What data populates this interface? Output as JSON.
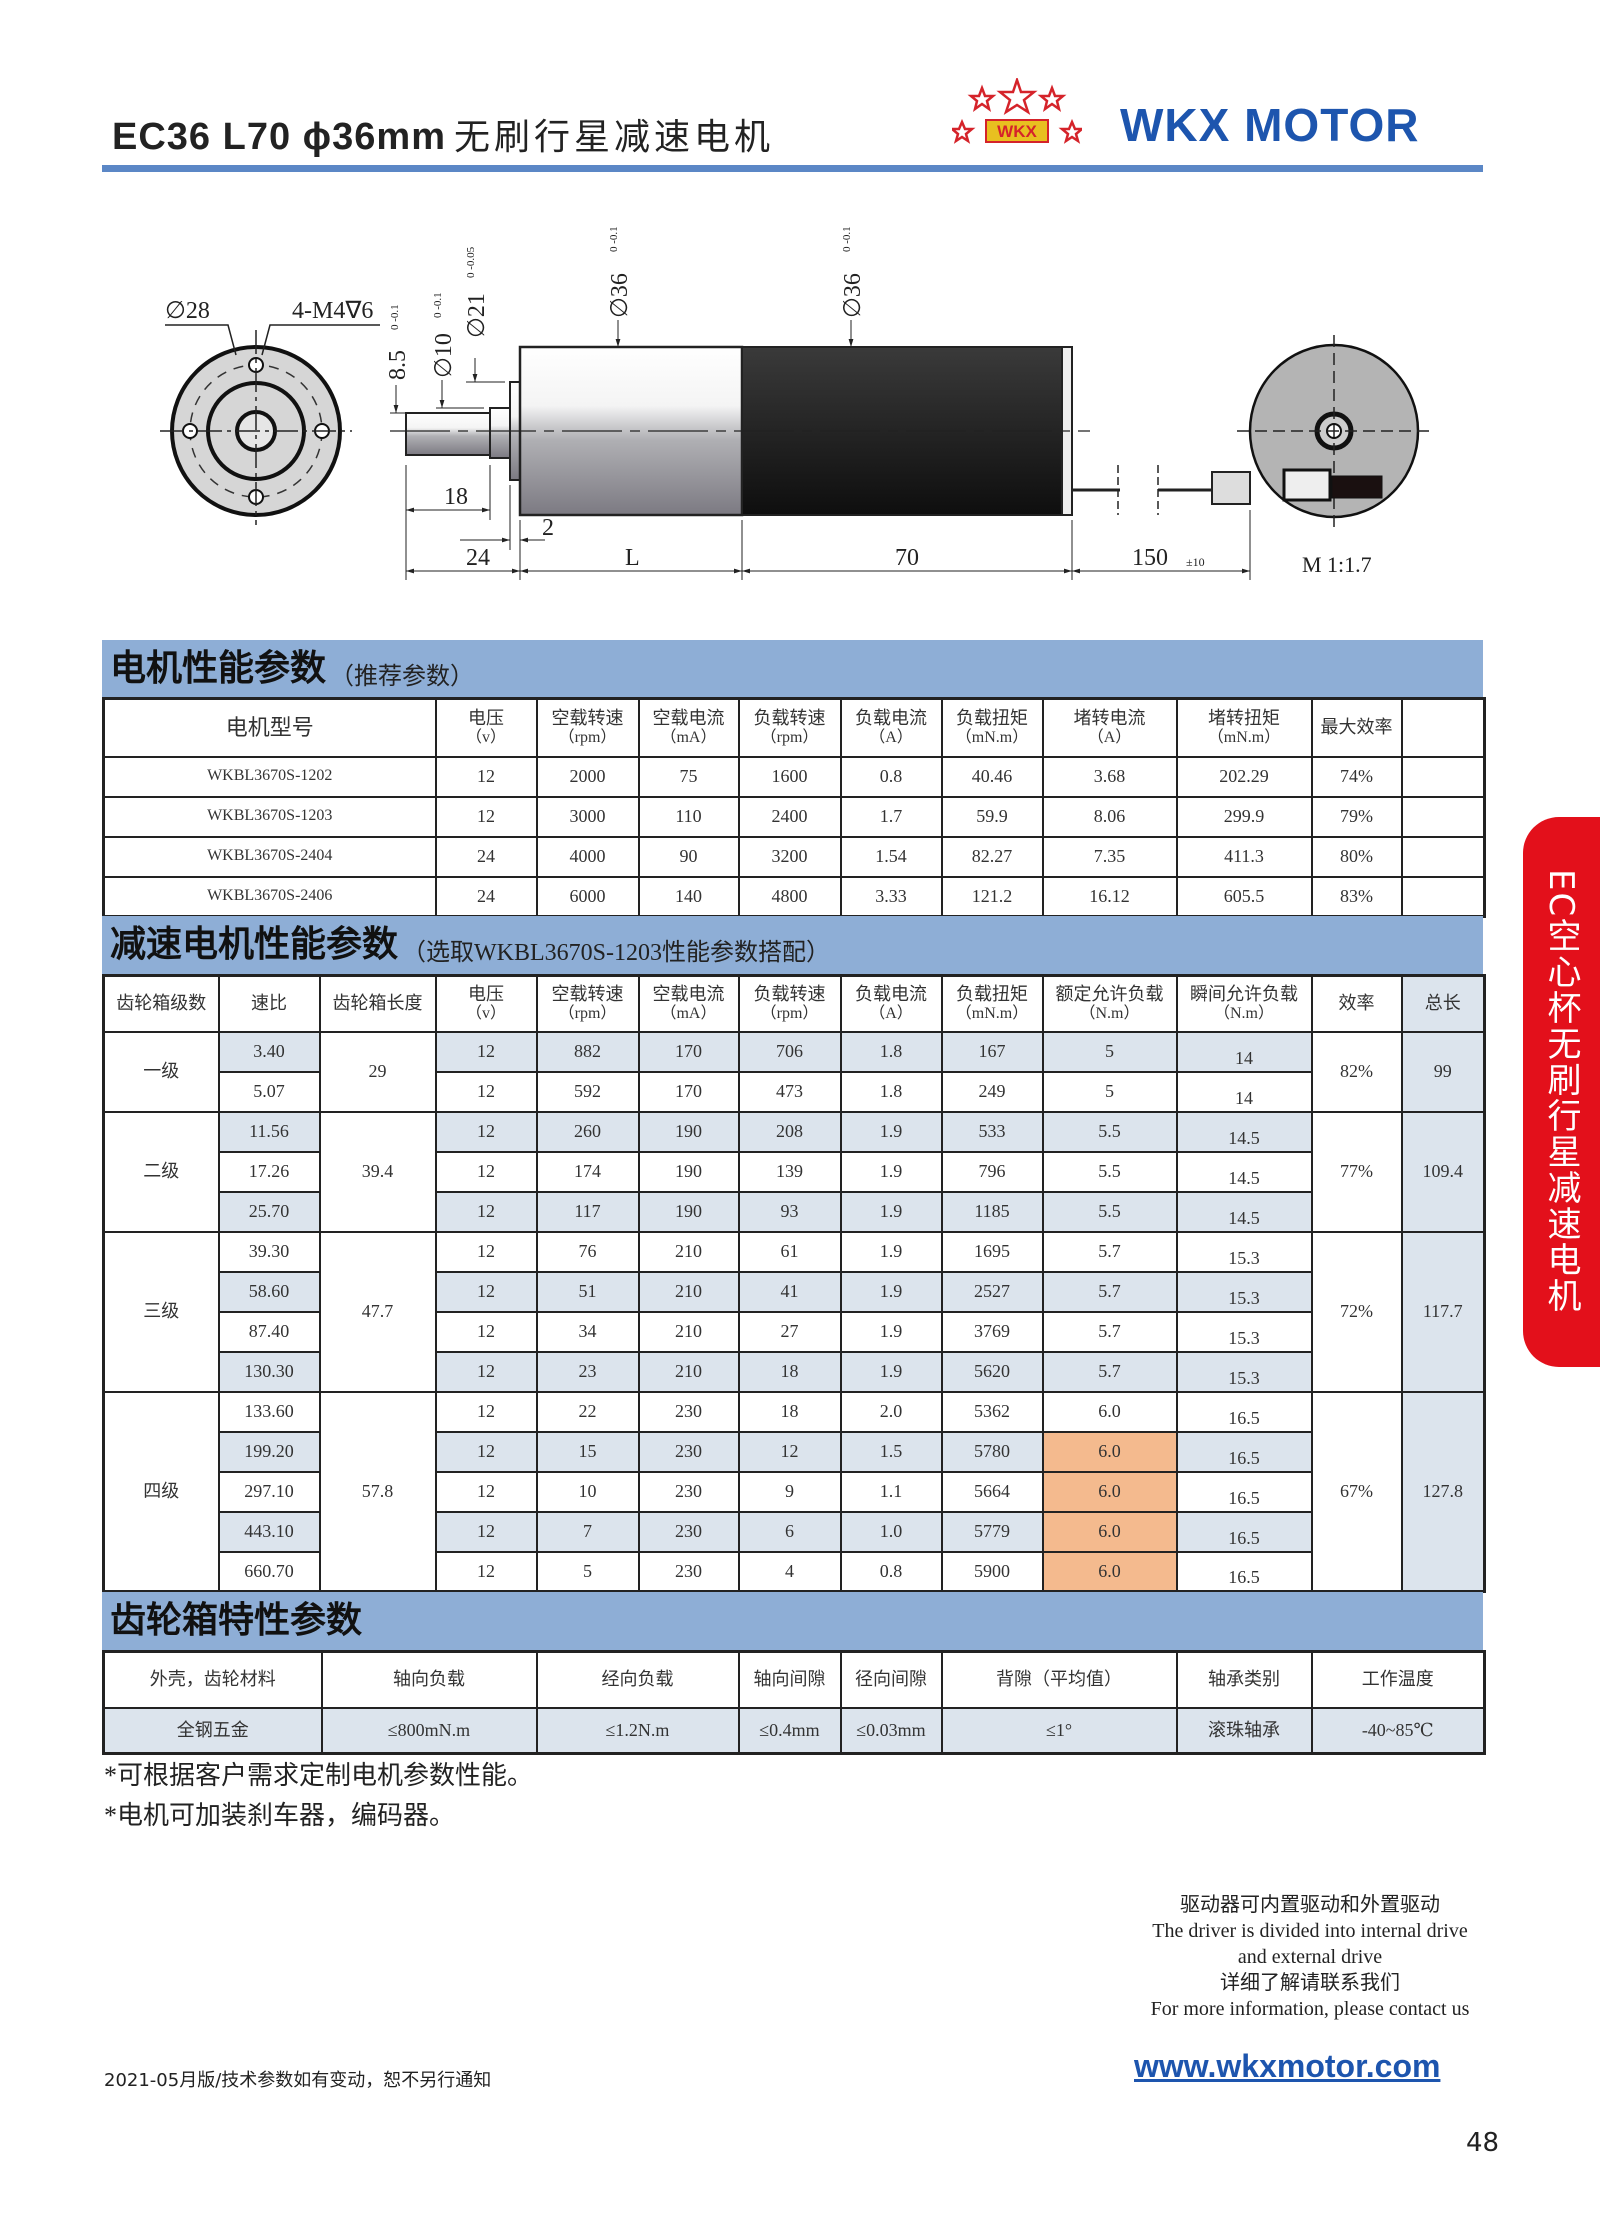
{
  "header": {
    "title_model": "EC36 L70 ϕ36mm",
    "title_cn": "无刷行星减速电机",
    "brand": "WKX MOTOR",
    "logo_text": "WKX"
  },
  "drawing": {
    "labels": {
      "d28": "∅28",
      "holes": "4-M4∇6",
      "h85": "8.5",
      "h85_tol": "0 -0.1",
      "d10": "∅10",
      "d10_tol": "0 -0.1",
      "d21": "∅21",
      "d21_tol": "0 -0.05",
      "d36a": "∅36",
      "d36a_tol": "0 -0.1",
      "d36b": "∅36",
      "d36b_tol": "0 -0.1",
      "l18": "18",
      "l2": "2",
      "l24": "24",
      "lL": "L",
      "l70": "70",
      "l150": "150",
      "l150_tol": "±10",
      "scale": "M 1:1.7"
    }
  },
  "motor": {
    "section_title": "电机性能参数",
    "section_sub": "（推荐参数）",
    "headers": [
      [
        "电机型号",
        ""
      ],
      [
        "电压",
        "（v）"
      ],
      [
        "空载转速",
        "（rpm）"
      ],
      [
        "空载电流",
        "（mA）"
      ],
      [
        "负载转速",
        "（rpm）"
      ],
      [
        "负载电流",
        "（A）"
      ],
      [
        "负载扭矩",
        "（mN.m）"
      ],
      [
        "堵转电流",
        "（A）"
      ],
      [
        "堵转扭矩",
        "（mN.m）"
      ],
      [
        "最大效率",
        ""
      ],
      [
        "",
        ""
      ]
    ],
    "rows": [
      [
        "WKBL3670S-1202",
        "12",
        "2000",
        "75",
        "1600",
        "0.8",
        "40.46",
        "3.68",
        "202.29",
        "74%",
        ""
      ],
      [
        "WKBL3670S-1203",
        "12",
        "3000",
        "110",
        "2400",
        "1.7",
        "59.9",
        "8.06",
        "299.9",
        "79%",
        ""
      ],
      [
        "WKBL3670S-2404",
        "24",
        "4000",
        "90",
        "3200",
        "1.54",
        "82.27",
        "7.35",
        "411.3",
        "80%",
        ""
      ],
      [
        "WKBL3670S-2406",
        "24",
        "6000",
        "140",
        "4800",
        "3.33",
        "121.2",
        "16.12",
        "605.5",
        "83%",
        ""
      ]
    ]
  },
  "gear": {
    "section_title": "减速电机性能参数",
    "section_sub": "（选取WKBL3670S-1203性能参数搭配）",
    "headers": [
      [
        "齿轮箱级数",
        ""
      ],
      [
        "速比",
        ""
      ],
      [
        "齿轮箱长度",
        ""
      ],
      [
        "电压",
        "（v）"
      ],
      [
        "空载转速",
        "（rpm）"
      ],
      [
        "空载电流",
        "（mA）"
      ],
      [
        "负载转速",
        "（rpm）"
      ],
      [
        "负载电流",
        "（A）"
      ],
      [
        "负载扭矩",
        "（mN.m）"
      ],
      [
        "额定允许负载",
        "（N.m）"
      ],
      [
        "瞬间允许负载",
        "（N.m）"
      ],
      [
        "效率",
        ""
      ],
      [
        "总长",
        ""
      ]
    ],
    "groups": [
      {
        "stage": "一级",
        "length": "29",
        "efficiency": "82%",
        "total": "99",
        "rows": [
          [
            "3.40",
            "12",
            "882",
            "170",
            "706",
            "1.8",
            "167",
            "5",
            "14"
          ],
          [
            "5.07",
            "12",
            "592",
            "170",
            "473",
            "1.8",
            "249",
            "5",
            "14"
          ]
        ]
      },
      {
        "stage": "二级",
        "length": "39.4",
        "efficiency": "77%",
        "total": "109.4",
        "rows": [
          [
            "11.56",
            "12",
            "260",
            "190",
            "208",
            "1.9",
            "533",
            "5.5",
            "14.5"
          ],
          [
            "17.26",
            "12",
            "174",
            "190",
            "139",
            "1.9",
            "796",
            "5.5",
            "14.5"
          ],
          [
            "25.70",
            "12",
            "117",
            "190",
            "93",
            "1.9",
            "1185",
            "5.5",
            "14.5"
          ]
        ]
      },
      {
        "stage": "三级",
        "length": "47.7",
        "efficiency": "72%",
        "total": "117.7",
        "rows": [
          [
            "39.30",
            "12",
            "76",
            "210",
            "61",
            "1.9",
            "1695",
            "5.7",
            "15.3"
          ],
          [
            "58.60",
            "12",
            "51",
            "210",
            "41",
            "1.9",
            "2527",
            "5.7",
            "15.3"
          ],
          [
            "87.40",
            "12",
            "34",
            "210",
            "27",
            "1.9",
            "3769",
            "5.7",
            "15.3"
          ],
          [
            "130.30",
            "12",
            "23",
            "210",
            "18",
            "1.9",
            "5620",
            "5.7",
            "15.3"
          ]
        ]
      },
      {
        "stage": "四级",
        "length": "57.8",
        "efficiency": "67%",
        "total": "127.8",
        "rows": [
          [
            "133.60",
            "12",
            "22",
            "230",
            "18",
            "2.0",
            "5362",
            "6.0",
            "16.5"
          ],
          [
            "199.20",
            "12",
            "15",
            "230",
            "12",
            "1.5",
            "5780",
            "6.0",
            "16.5"
          ],
          [
            "297.10",
            "12",
            "10",
            "230",
            "9",
            "1.1",
            "5664",
            "6.0",
            "16.5"
          ],
          [
            "443.10",
            "12",
            "7",
            "230",
            "6",
            "1.0",
            "5779",
            "6.0",
            "16.5"
          ],
          [
            "660.70",
            "12",
            "5",
            "230",
            "4",
            "0.8",
            "5900",
            "6.0",
            "16.5"
          ]
        ]
      }
    ],
    "highlight_color": "#f4ba8e"
  },
  "gearbox": {
    "section_title": "齿轮箱特性参数",
    "headers": [
      "外壳，齿轮材料",
      "轴向负载",
      "经向负载",
      "轴向间隙",
      "径向间隙",
      "背隙（平均值）",
      "轴承类别",
      "工作温度"
    ],
    "values": [
      "全钢五金",
      "≤800mN.m",
      "≤1.2N.m",
      "≤0.4mm",
      "≤0.03mm",
      "≤1°",
      "滚珠轴承",
      "-40~85℃"
    ]
  },
  "notes": [
    "*可根据客户需求定制电机参数性能。",
    "*电机可加装刹车器，编码器。"
  ],
  "contact": [
    "驱动器可内置驱动和外置驱动",
    "The driver is divided into internal drive",
    "and external drive",
    "详细了解请联系我们",
    "For more information, please contact us"
  ],
  "url": "www.wkxmotor.com",
  "footer": "2021-05月版/技术参数如有变动，恕不另行通知",
  "page_number": "48",
  "side_tab": "EC空心杯无刷行星减速电机",
  "colors": {
    "band": "#8eaed6",
    "brand_blue": "#1d55ae",
    "side_tab_red": "#e3101b",
    "row_shade": "#dce4ed"
  }
}
